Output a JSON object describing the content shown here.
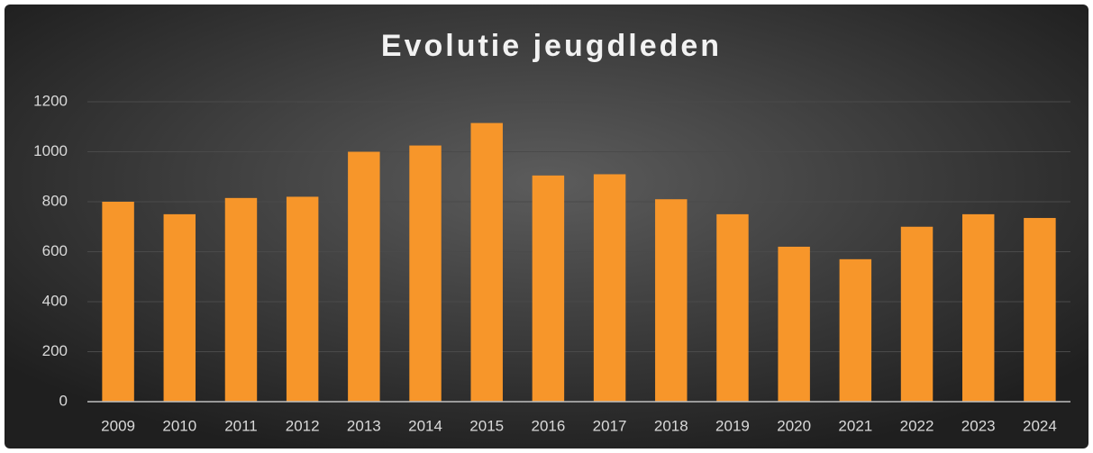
{
  "chart_data": {
    "type": "bar",
    "title": "Evolutie jeugdleden",
    "categories": [
      "2009",
      "2010",
      "2011",
      "2012",
      "2013",
      "2014",
      "2015",
      "2016",
      "2017",
      "2018",
      "2019",
      "2020",
      "2021",
      "2022",
      "2023",
      "2024"
    ],
    "values": [
      800,
      750,
      815,
      820,
      1000,
      1025,
      1115,
      905,
      910,
      810,
      750,
      620,
      570,
      700,
      750,
      735
    ],
    "color": "#f7962a",
    "ylim": [
      0,
      1200
    ],
    "yticks": [
      0,
      200,
      400,
      600,
      800,
      1000,
      1200
    ],
    "grid": true
  }
}
